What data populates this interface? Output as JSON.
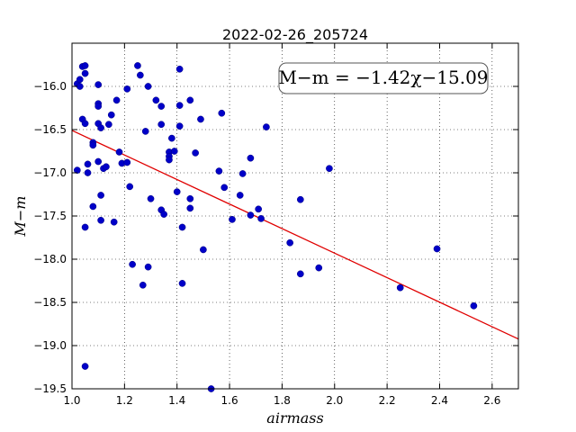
{
  "chart_data": {
    "type": "scatter",
    "title": "2022-02-26_205724",
    "xlabel": "airmass",
    "ylabel": "M−m",
    "xlim": [
      1.0,
      2.7
    ],
    "ylim": [
      -19.5,
      -15.5
    ],
    "y_inverted": false,
    "grid": true,
    "grid_style": "dotted",
    "x_ticks": [
      1.0,
      1.2,
      1.4,
      1.6,
      1.8,
      2.0,
      2.2,
      2.4,
      2.6
    ],
    "x_tick_labels": [
      "1.0",
      "1.2",
      "1.4",
      "1.6",
      "1.8",
      "2.0",
      "2.2",
      "2.4",
      "2.6"
    ],
    "y_ticks": [
      -16.0,
      -16.5,
      -17.0,
      -17.5,
      -18.0,
      -18.5,
      -19.0,
      -19.5
    ],
    "y_tick_labels": [
      "−16.0",
      "−16.5",
      "−17.0",
      "−17.5",
      "−18.0",
      "−18.5",
      "−19.0",
      "−19.5"
    ],
    "annotation": "M−m = −1.42χ−15.09",
    "annotation_placement": "top-right",
    "fit_line": {
      "slope": -1.42,
      "intercept": -15.09,
      "color": "#e00000"
    },
    "point_color": "#0000c8",
    "points": [
      [
        1.02,
        -15.97
      ],
      [
        1.03,
        -16.0
      ],
      [
        1.03,
        -15.92
      ],
      [
        1.04,
        -15.77
      ],
      [
        1.05,
        -15.85
      ],
      [
        1.05,
        -15.76
      ],
      [
        1.04,
        -16.38
      ],
      [
        1.05,
        -16.43
      ],
      [
        1.02,
        -16.97
      ],
      [
        1.06,
        -16.9
      ],
      [
        1.06,
        -17.0
      ],
      [
        1.05,
        -17.63
      ],
      [
        1.05,
        -19.24
      ],
      [
        1.08,
        -16.65
      ],
      [
        1.08,
        -16.68
      ],
      [
        1.08,
        -17.39
      ],
      [
        1.1,
        -15.98
      ],
      [
        1.1,
        -16.2
      ],
      [
        1.1,
        -16.23
      ],
      [
        1.1,
        -16.43
      ],
      [
        1.11,
        -16.48
      ],
      [
        1.1,
        -16.87
      ],
      [
        1.12,
        -16.95
      ],
      [
        1.13,
        -16.93
      ],
      [
        1.11,
        -17.26
      ],
      [
        1.11,
        -17.55
      ],
      [
        1.14,
        -16.44
      ],
      [
        1.15,
        -16.33
      ],
      [
        1.17,
        -16.16
      ],
      [
        1.16,
        -17.57
      ],
      [
        1.18,
        -16.76
      ],
      [
        1.19,
        -16.89
      ],
      [
        1.21,
        -16.88
      ],
      [
        1.21,
        -16.03
      ],
      [
        1.22,
        -17.16
      ],
      [
        1.23,
        -18.06
      ],
      [
        1.25,
        -15.76
      ],
      [
        1.26,
        -15.87
      ],
      [
        1.27,
        -18.3
      ],
      [
        1.28,
        -16.52
      ],
      [
        1.29,
        -16.0
      ],
      [
        1.29,
        -18.09
      ],
      [
        1.3,
        -17.3
      ],
      [
        1.32,
        -16.16
      ],
      [
        1.34,
        -16.44
      ],
      [
        1.34,
        -16.23
      ],
      [
        1.34,
        -17.43
      ],
      [
        1.35,
        -17.48
      ],
      [
        1.37,
        -16.76
      ],
      [
        1.37,
        -16.81
      ],
      [
        1.37,
        -16.85
      ],
      [
        1.38,
        -16.6
      ],
      [
        1.39,
        -16.75
      ],
      [
        1.4,
        -17.22
      ],
      [
        1.41,
        -15.8
      ],
      [
        1.41,
        -16.22
      ],
      [
        1.41,
        -16.46
      ],
      [
        1.42,
        -17.63
      ],
      [
        1.42,
        -18.28
      ],
      [
        1.45,
        -16.16
      ],
      [
        1.45,
        -17.3
      ],
      [
        1.45,
        -17.41
      ],
      [
        1.47,
        -16.77
      ],
      [
        1.49,
        -16.38
      ],
      [
        1.5,
        -17.89
      ],
      [
        1.53,
        -19.5
      ],
      [
        1.56,
        -16.98
      ],
      [
        1.57,
        -16.31
      ],
      [
        1.58,
        -17.17
      ],
      [
        1.61,
        -17.54
      ],
      [
        1.64,
        -17.26
      ],
      [
        1.65,
        -17.01
      ],
      [
        1.68,
        -16.83
      ],
      [
        1.68,
        -17.49
      ],
      [
        1.71,
        -17.42
      ],
      [
        1.72,
        -17.53
      ],
      [
        1.74,
        -16.47
      ],
      [
        1.83,
        -17.81
      ],
      [
        1.87,
        -17.31
      ],
      [
        1.87,
        -18.17
      ],
      [
        1.94,
        -18.1
      ],
      [
        1.98,
        -16.95
      ],
      [
        2.25,
        -18.33
      ],
      [
        2.39,
        -17.88
      ],
      [
        2.53,
        -18.54
      ]
    ]
  }
}
